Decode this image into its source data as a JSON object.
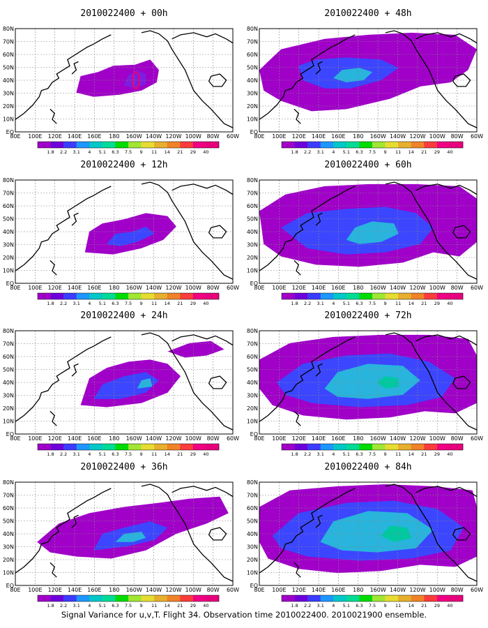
{
  "caption": "Signal Variance for u,v,T. Flight 34. Observation time 2010022400. 2010021900 ensemble.",
  "longitude_ticks": [
    "80E",
    "100E",
    "120E",
    "140E",
    "160E",
    "180",
    "160W",
    "140W",
    "120W",
    "100W",
    "80W",
    "60W"
  ],
  "latitude_ticks": [
    "EQ",
    "10N",
    "20N",
    "30N",
    "40N",
    "50N",
    "60N",
    "70N",
    "80N"
  ],
  "colorbar": {
    "levels": [
      "1.8",
      "2.2",
      "3.1",
      "4",
      "5.1",
      "6.3",
      "7.5",
      "9",
      "11",
      "14",
      "21",
      "29",
      "40"
    ],
    "colors": [
      "#a000c8",
      "#6e00dc",
      "#3c3cff",
      "#1e96ff",
      "#00c8c8",
      "#00dc96",
      "#00dc00",
      "#a0e632",
      "#e6dc32",
      "#e6af2d",
      "#f08228",
      "#fa3c3c",
      "#f00082",
      "#e6007c"
    ]
  },
  "shading_colors": {
    "purple": "#a000c8",
    "violet": "#7a1fe0",
    "blue": "#3c46ff",
    "cyan": "#28b4dc",
    "teal": "#00c8a0",
    "green": "#00d23c",
    "marker": "#e6007c"
  },
  "panels": [
    {
      "title": "2010022400 + 00h"
    },
    {
      "title": "2010022400 + 48h"
    },
    {
      "title": "2010022400 + 12h"
    },
    {
      "title": "2010022400 + 60h"
    },
    {
      "title": "2010022400 + 24h"
    },
    {
      "title": "2010022400 + 72h"
    },
    {
      "title": "2010022400 + 36h"
    },
    {
      "title": "2010022400 + 84h"
    }
  ]
}
